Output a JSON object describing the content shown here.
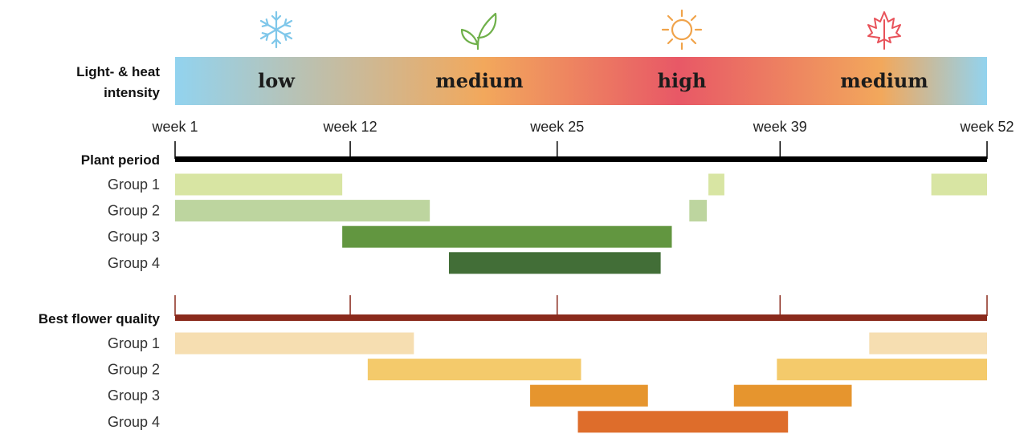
{
  "heat": {
    "label_line1": "Light- & heat",
    "label_line2": "intensity",
    "bands": [
      "low",
      "medium",
      "high",
      "medium"
    ],
    "icons": [
      "snowflake-icon",
      "leaf-icon",
      "sun-icon",
      "maple-leaf-icon"
    ],
    "colors": [
      "#92d3ef",
      "#f2a85c",
      "#e85866",
      "#f2a85c",
      "#92d3ef"
    ]
  },
  "axis": {
    "ticks": [
      1,
      12,
      25,
      39,
      52
    ],
    "tick_labels": [
      "week 1",
      "week 12",
      "week 25",
      "week 39",
      "week 52"
    ]
  },
  "plant": {
    "title": "Plant period",
    "line_color": "#000000",
    "groups": [
      {
        "label": "Group 1",
        "color": "#d8e5a3",
        "ranges": [
          [
            1,
            11.5
          ],
          [
            34.5,
            35.5
          ],
          [
            48.5,
            52
          ]
        ]
      },
      {
        "label": "Group 2",
        "color": "#bdd59f",
        "ranges": [
          [
            1,
            17
          ],
          [
            33.3,
            34.4
          ]
        ]
      },
      {
        "label": "Group 3",
        "color": "#629640",
        "ranges": [
          [
            11.5,
            32.2
          ]
        ]
      },
      {
        "label": "Group 4",
        "color": "#426e37",
        "ranges": [
          [
            18.2,
            31.5
          ]
        ]
      }
    ]
  },
  "flower": {
    "title": "Best flower quality",
    "line_color": "#8a2a1c",
    "groups": [
      {
        "label": "Group 1",
        "color": "#f6deb1",
        "ranges": [
          [
            1,
            16
          ],
          [
            44.6,
            52
          ]
        ]
      },
      {
        "label": "Group 2",
        "color": "#f4ca6b",
        "ranges": [
          [
            13.1,
            26.5
          ],
          [
            38.8,
            52
          ]
        ]
      },
      {
        "label": "Group 3",
        "color": "#e6952e",
        "ranges": [
          [
            23.3,
            30.7
          ],
          [
            36.1,
            43.5
          ]
        ]
      },
      {
        "label": "Group 4",
        "color": "#de6d2b",
        "ranges": [
          [
            26.3,
            39.5
          ]
        ]
      }
    ]
  },
  "chart_data": {
    "type": "gantt",
    "x_unit": "week",
    "xlim": [
      1,
      52
    ],
    "x_ticks": [
      1,
      12,
      25,
      39,
      52
    ],
    "series": [
      {
        "name": "Plant period - Group 1",
        "ranges": [
          [
            1,
            11.5
          ],
          [
            34.5,
            35.5
          ],
          [
            48.5,
            52
          ]
        ]
      },
      {
        "name": "Plant period - Group 2",
        "ranges": [
          [
            1,
            17
          ],
          [
            33.3,
            34.4
          ]
        ]
      },
      {
        "name": "Plant period - Group 3",
        "ranges": [
          [
            11.5,
            32.2
          ]
        ]
      },
      {
        "name": "Plant period - Group 4",
        "ranges": [
          [
            18.2,
            31.5
          ]
        ]
      },
      {
        "name": "Best flower quality - Group 1",
        "ranges": [
          [
            1,
            16
          ],
          [
            44.6,
            52
          ]
        ]
      },
      {
        "name": "Best flower quality - Group 2",
        "ranges": [
          [
            13.1,
            26.5
          ],
          [
            38.8,
            52
          ]
        ]
      },
      {
        "name": "Best flower quality - Group 3",
        "ranges": [
          [
            23.3,
            30.7
          ],
          [
            36.1,
            43.5
          ]
        ]
      },
      {
        "name": "Best flower quality - Group 4",
        "ranges": [
          [
            26.3,
            39.5
          ]
        ]
      }
    ]
  }
}
